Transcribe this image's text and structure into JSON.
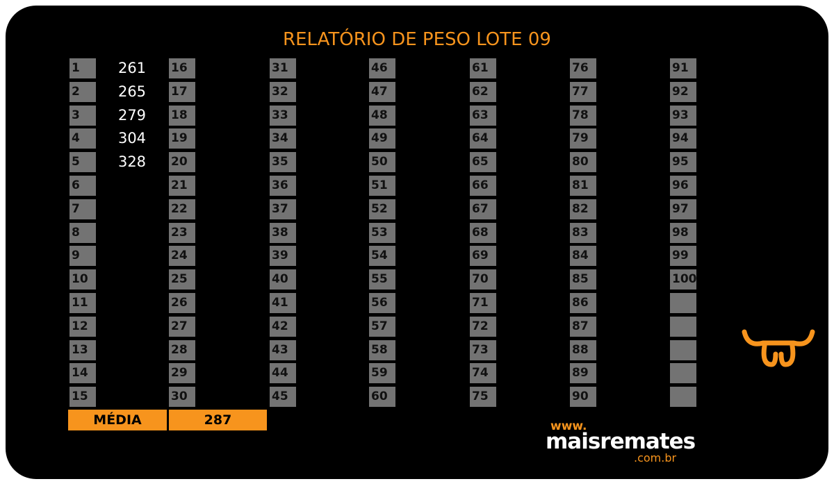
{
  "header": {
    "title": "RELATÓRIO DE PESO LOTE 09"
  },
  "lots": [
    {
      "number": 1,
      "weight": 261
    },
    {
      "number": 2,
      "weight": 265
    },
    {
      "number": 3,
      "weight": 279
    },
    {
      "number": 4,
      "weight": 304
    },
    {
      "number": 5,
      "weight": 328
    },
    {
      "number": 6
    },
    {
      "number": 7
    },
    {
      "number": 8
    },
    {
      "number": 9
    },
    {
      "number": 10
    },
    {
      "number": 11
    },
    {
      "number": 12
    },
    {
      "number": 13
    },
    {
      "number": 14
    },
    {
      "number": 15
    },
    {
      "number": 16
    },
    {
      "number": 17
    },
    {
      "number": 18
    },
    {
      "number": 19
    },
    {
      "number": 20
    },
    {
      "number": 21
    },
    {
      "number": 22
    },
    {
      "number": 23
    },
    {
      "number": 24
    },
    {
      "number": 25
    },
    {
      "number": 26
    },
    {
      "number": 27
    },
    {
      "number": 28
    },
    {
      "number": 29
    },
    {
      "number": 30
    },
    {
      "number": 31
    },
    {
      "number": 32
    },
    {
      "number": 33
    },
    {
      "number": 34
    },
    {
      "number": 35
    },
    {
      "number": 36
    },
    {
      "number": 37
    },
    {
      "number": 38
    },
    {
      "number": 39
    },
    {
      "number": 40
    },
    {
      "number": 41
    },
    {
      "number": 42
    },
    {
      "number": 43
    },
    {
      "number": 44
    },
    {
      "number": 45
    },
    {
      "number": 46
    },
    {
      "number": 47
    },
    {
      "number": 48
    },
    {
      "number": 49
    },
    {
      "number": 50
    },
    {
      "number": 51
    },
    {
      "number": 52
    },
    {
      "number": 53
    },
    {
      "number": 54
    },
    {
      "number": 55
    },
    {
      "number": 56
    },
    {
      "number": 57
    },
    {
      "number": 58
    },
    {
      "number": 59
    },
    {
      "number": 60
    },
    {
      "number": 61
    },
    {
      "number": 62
    },
    {
      "number": 63
    },
    {
      "number": 64
    },
    {
      "number": 65
    },
    {
      "number": 66
    },
    {
      "number": 67
    },
    {
      "number": 68
    },
    {
      "number": 69
    },
    {
      "number": 70
    },
    {
      "number": 71
    },
    {
      "number": 72
    },
    {
      "number": 73
    },
    {
      "number": 74
    },
    {
      "number": 75
    },
    {
      "number": 76
    },
    {
      "number": 77
    },
    {
      "number": 78
    },
    {
      "number": 79
    },
    {
      "number": 80
    },
    {
      "number": 81
    },
    {
      "number": 82
    },
    {
      "number": 83
    },
    {
      "number": 84
    },
    {
      "number": 85
    },
    {
      "number": 86
    },
    {
      "number": 87
    },
    {
      "number": 88
    },
    {
      "number": 89
    },
    {
      "number": 90
    },
    {
      "number": 91
    },
    {
      "number": 92
    },
    {
      "number": 93
    },
    {
      "number": 94
    },
    {
      "number": 95
    },
    {
      "number": 96
    },
    {
      "number": 97
    },
    {
      "number": 98
    },
    {
      "number": 99
    },
    {
      "number": 100
    }
  ],
  "average": {
    "label": "MÉDIA",
    "value": 287
  },
  "logo": {
    "prefix": "www.",
    "name": "maisremates",
    "suffix": ".com.br"
  }
}
